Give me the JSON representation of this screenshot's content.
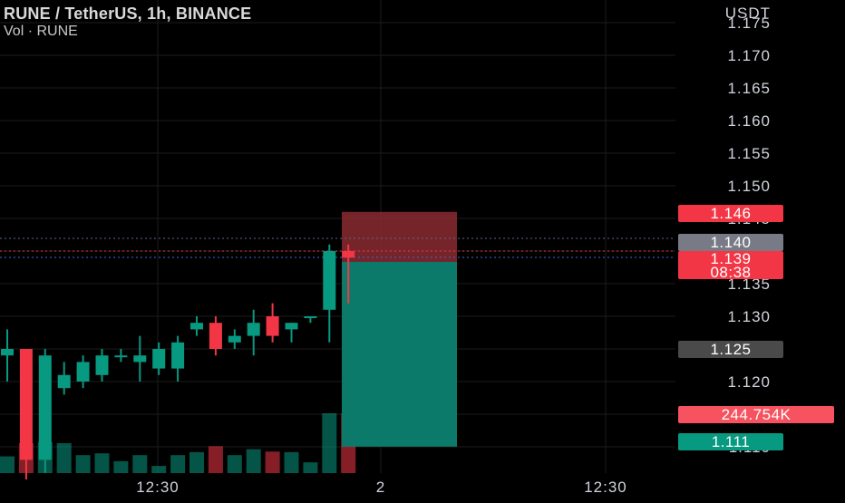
{
  "header": {
    "title": "RUNE / TetherUS, 1h, BINANCE",
    "volume_label": "Vol · RUNE"
  },
  "price_axis": {
    "currency": "USDT",
    "ticks": [
      "1.175",
      "1.170",
      "1.165",
      "1.160",
      "1.155",
      "1.150",
      "1.145",
      "1.135",
      "1.130",
      "1.120",
      "1.110"
    ]
  },
  "time_axis": {
    "ticks": [
      "12:30",
      "2",
      "12:30"
    ]
  },
  "price_tags": {
    "stop_loss": "1.146",
    "entry": "1.140",
    "last_price": "1.139",
    "countdown": "08:38",
    "level": "1.125",
    "volume": "244.754K",
    "target": "1.111"
  },
  "colors": {
    "up": "#089981",
    "down": "#f23645",
    "background": "#000000",
    "grid": "#1c1c1c",
    "axis_text": "#d1d4dc",
    "risk_zone": "#8a2a30",
    "reward_zone": "#0c7a6a"
  },
  "chart_data": {
    "type": "candlestick",
    "symbol": "RUNE / TetherUS",
    "interval": "1h",
    "exchange": "BINANCE",
    "y_unit": "USDT",
    "ylim": [
      1.109,
      1.176
    ],
    "candles": [
      {
        "o": 1.124,
        "h": 1.128,
        "l": 1.12,
        "c": 1.125,
        "vol": 0.28
      },
      {
        "o": 1.125,
        "h": 1.125,
        "l": 1.105,
        "c": 1.108,
        "vol": 0.5
      },
      {
        "o": 1.108,
        "h": 1.125,
        "l": 1.106,
        "c": 1.124,
        "vol": 0.52
      },
      {
        "o": 1.119,
        "h": 1.123,
        "l": 1.118,
        "c": 1.121,
        "vol": 0.5
      },
      {
        "o": 1.12,
        "h": 1.124,
        "l": 1.119,
        "c": 1.123,
        "vol": 0.3
      },
      {
        "o": 1.121,
        "h": 1.125,
        "l": 1.12,
        "c": 1.124,
        "vol": 0.33
      },
      {
        "o": 1.124,
        "h": 1.125,
        "l": 1.123,
        "c": 1.124,
        "vol": 0.2
      },
      {
        "o": 1.123,
        "h": 1.127,
        "l": 1.12,
        "c": 1.124,
        "vol": 0.3
      },
      {
        "o": 1.122,
        "h": 1.126,
        "l": 1.121,
        "c": 1.125,
        "vol": 0.12
      },
      {
        "o": 1.122,
        "h": 1.127,
        "l": 1.12,
        "c": 1.126,
        "vol": 0.3
      },
      {
        "o": 1.128,
        "h": 1.13,
        "l": 1.127,
        "c": 1.129,
        "vol": 0.35
      },
      {
        "o": 1.129,
        "h": 1.13,
        "l": 1.124,
        "c": 1.125,
        "vol": 0.45
      },
      {
        "o": 1.126,
        "h": 1.128,
        "l": 1.125,
        "c": 1.127,
        "vol": 0.3
      },
      {
        "o": 1.127,
        "h": 1.131,
        "l": 1.124,
        "c": 1.129,
        "vol": 0.4
      },
      {
        "o": 1.13,
        "h": 1.132,
        "l": 1.126,
        "c": 1.127,
        "vol": 0.36
      },
      {
        "o": 1.128,
        "h": 1.129,
        "l": 1.126,
        "c": 1.129,
        "vol": 0.35
      },
      {
        "o": 1.13,
        "h": 1.13,
        "l": 1.129,
        "c": 1.13,
        "vol": 0.18
      },
      {
        "o": 1.131,
        "h": 1.141,
        "l": 1.126,
        "c": 1.14,
        "vol": 1.0
      },
      {
        "o": 1.14,
        "h": 1.141,
        "l": 1.132,
        "c": 1.139,
        "vol": 1.0
      }
    ],
    "position": {
      "side": "short",
      "entry": 1.14,
      "stop": 1.146,
      "target": 1.111
    }
  }
}
